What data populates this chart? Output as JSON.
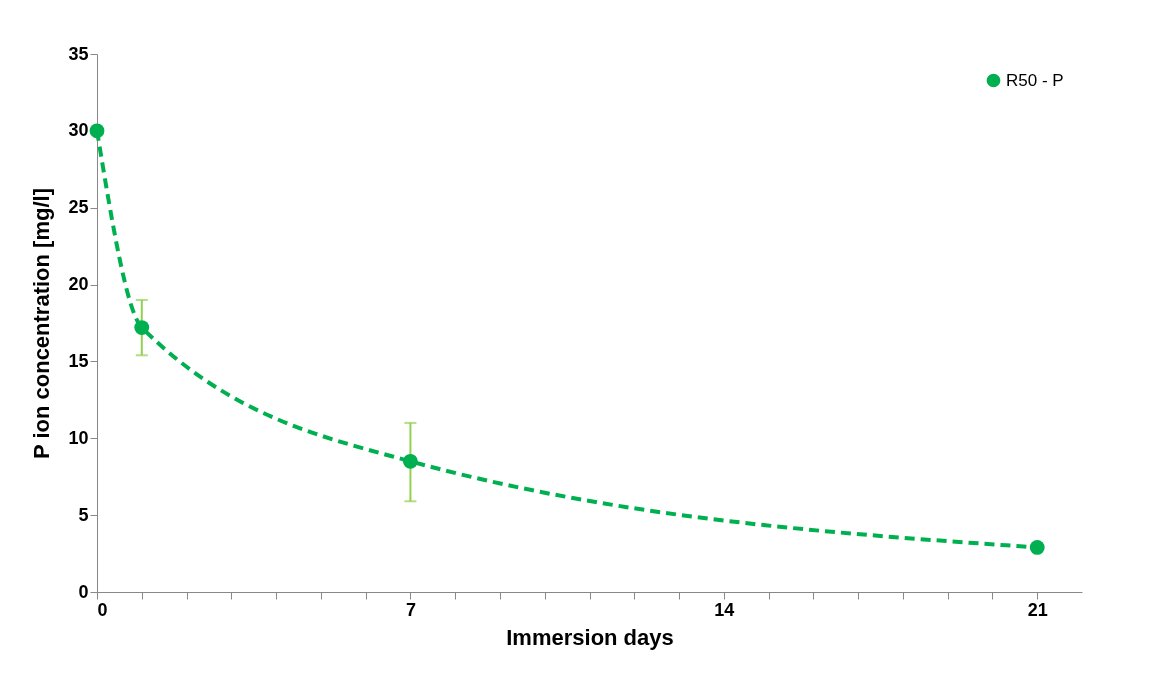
{
  "chart_data": {
    "type": "line",
    "xlabel": "Immersion days",
    "ylabel": "P ion concentration [mg/l]",
    "x": [
      0,
      1,
      7,
      21
    ],
    "series": [
      {
        "name": "R50 - P",
        "color": "#00b050",
        "values": [
          30,
          17.2,
          8.5,
          2.9
        ],
        "errors": [
          null,
          [
            15.4,
            19.0
          ],
          [
            5.9,
            11.0
          ],
          null
        ]
      }
    ],
    "xlim": [
      0,
      22
    ],
    "xticks": [
      0,
      {
        "value": 1,
        "label": null
      },
      {
        "value": 2,
        "label": null
      },
      {
        "value": 3,
        "label": null
      },
      {
        "value": 4,
        "label": null
      },
      {
        "value": 5,
        "label": null
      },
      {
        "value": 6,
        "label": null
      },
      7,
      {
        "value": 8,
        "label": null
      },
      {
        "value": 9,
        "label": null
      },
      {
        "value": 10,
        "label": null
      },
      {
        "value": 11,
        "label": null
      },
      {
        "value": 12,
        "label": null
      },
      {
        "value": 13,
        "label": null
      },
      14,
      {
        "value": 15,
        "label": null
      },
      {
        "value": 16,
        "label": null
      },
      {
        "value": 17,
        "label": null
      },
      {
        "value": 18,
        "label": null
      },
      {
        "value": 19,
        "label": null
      },
      {
        "value": 20,
        "label": null
      },
      21
    ],
    "ylim": [
      0,
      35
    ],
    "yticks": [
      0,
      5,
      10,
      15,
      20,
      25,
      30,
      35
    ],
    "grid": false,
    "legend": "top right",
    "marker": "circle",
    "line_style": "dashed"
  }
}
